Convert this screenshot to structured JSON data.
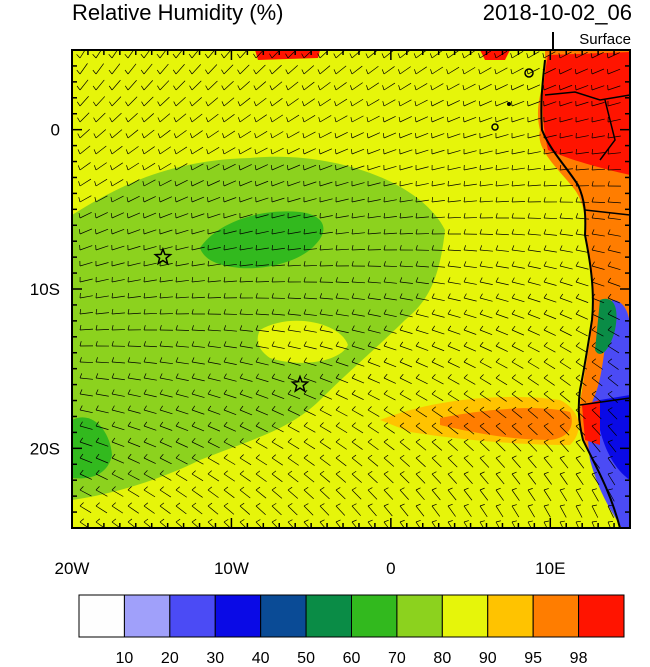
{
  "header": {
    "title": "Relative Humidity (%)",
    "datetime": "2018-10-02_06",
    "level": "Surface"
  },
  "map": {
    "lon_range": [
      -20,
      15
    ],
    "lat_range": [
      -25,
      5
    ],
    "x_ticks": [
      {
        "lon": -20,
        "label": "20W"
      },
      {
        "lon": -10,
        "label": "10W"
      },
      {
        "lon": 0,
        "label": "0"
      },
      {
        "lon": 10,
        "label": "10E"
      }
    ],
    "y_ticks": [
      {
        "lat": 0,
        "label": "0"
      },
      {
        "lat": -10,
        "label": "10S"
      },
      {
        "lat": -20,
        "label": "20S"
      }
    ],
    "markers": [
      {
        "name": "star",
        "lon": -14.3,
        "lat": -8
      },
      {
        "name": "star",
        "lon": -5.7,
        "lat": -16
      }
    ]
  },
  "colorbar": {
    "colors": [
      "#fefefe",
      "#a0a0fa",
      "#4b4bf5",
      "#0a0ae6",
      "#0a4b96",
      "#0a8c46",
      "#32b91e",
      "#8cd21e",
      "#e6f50a",
      "#ffc300",
      "#ff7d00",
      "#ff1400"
    ],
    "labels": [
      "10",
      "20",
      "30",
      "40",
      "50",
      "60",
      "70",
      "80",
      "90",
      "95",
      "98"
    ]
  }
}
